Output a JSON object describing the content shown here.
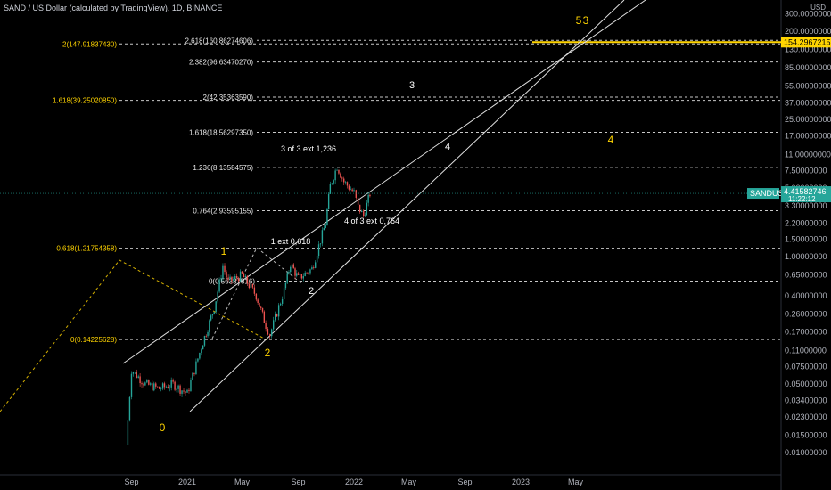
{
  "header": {
    "title": "SAND / US Dollar (calculated by TradingView), 1D, BINANCE"
  },
  "axis": {
    "currency": "USD"
  },
  "chart_data": {
    "type": "candlestick",
    "symbol": "SANDUSD",
    "price_tag": {
      "symbol": "SANDUSD",
      "value": "4.41582746",
      "countdown": "11:22:12",
      "color": "#26a69a"
    },
    "target_tag": {
      "value": "154.29672152",
      "color": "#ffd400"
    },
    "y_scale": "log",
    "ylim": [
      0.008,
      380
    ],
    "y_ticks": [
      "300.00000000",
      "200.00000000",
      "130.00000000",
      "85.00000000",
      "55.00000000",
      "37.00000000",
      "25.00000000",
      "17.00000000",
      "11.00000000",
      "7.50000000",
      "5.00000000",
      "3.30000000",
      "2.20000000",
      "1.50000000",
      "1.00000000",
      "0.65000000",
      "0.40000000",
      "0.26000000",
      "0.17000000",
      "0.11000000",
      "0.07500000",
      "0.05000000",
      "0.03400000",
      "0.02300000",
      "0.01500000",
      "0.01000000"
    ],
    "x_ticks": [
      "Sep",
      "2021",
      "May",
      "Sep",
      "2022",
      "May",
      "Sep",
      "2023",
      "May"
    ],
    "x_tick_dates": [
      "2020-09-01",
      "2021-01-01",
      "2021-05-01",
      "2021-09-01",
      "2022-01-01",
      "2022-05-01",
      "2022-09-01",
      "2023-01-01",
      "2023-05-01"
    ],
    "fib_levels_white": [
      {
        "label": "2.618(160.86274606)",
        "value": 160.86
      },
      {
        "label": "2.382(96.63470270)",
        "value": 96.63
      },
      {
        "label": "2(42.35363590)",
        "value": 42.35
      },
      {
        "label": "1.618(18.56297350)",
        "value": 18.56
      },
      {
        "label": "1.236(8.13584575)",
        "value": 8.14
      },
      {
        "label": "0.764(2.93595155)",
        "value": 2.94
      },
      {
        "label": "0(0.56337816)",
        "value": 0.563
      }
    ],
    "fib_levels_yellow": [
      {
        "label": "2(147.91837430)",
        "value": 147.92
      },
      {
        "label": "1.618(39.25020850)",
        "value": 39.25
      },
      {
        "label": "0.618(1.21754358)",
        "value": 1.2175
      },
      {
        "label": "0(0.14225628)",
        "value": 0.1423
      }
    ],
    "wave_labels_yellow": [
      "0",
      "1",
      "2",
      "5",
      "3",
      "4"
    ],
    "wave_labels_white": [
      "2",
      "3",
      "4"
    ],
    "annotations": [
      "3 of 3 ext 1,236",
      "4 of 3 ext 0,764",
      "1 ext 0,618"
    ],
    "series": [
      {
        "x": [
          "2020-08-20",
          "2020-09-01",
          "2020-10-01",
          "2020-11-01",
          "2020-12-01",
          "2021-01-01",
          "2021-02-01",
          "2021-03-01",
          "2021-03-20",
          "2021-04-01",
          "2021-05-01",
          "2021-06-01",
          "2021-06-22",
          "2021-07-01",
          "2021-08-01",
          "2021-08-15",
          "2021-09-01",
          "2021-10-01",
          "2021-10-31",
          "2021-11-10",
          "2021-11-25",
          "2021-12-10",
          "2022-01-01",
          "2022-01-10",
          "2022-01-22",
          "2022-02-05"
        ],
        "values": [
          0.012,
          0.07,
          0.05,
          0.045,
          0.05,
          0.04,
          0.12,
          0.3,
          0.8,
          0.55,
          0.65,
          0.4,
          0.2,
          0.16,
          0.45,
          0.85,
          0.6,
          0.75,
          2.2,
          5.3,
          8.4,
          5.8,
          4.5,
          3.2,
          2.6,
          4.4
        ]
      }
    ]
  }
}
